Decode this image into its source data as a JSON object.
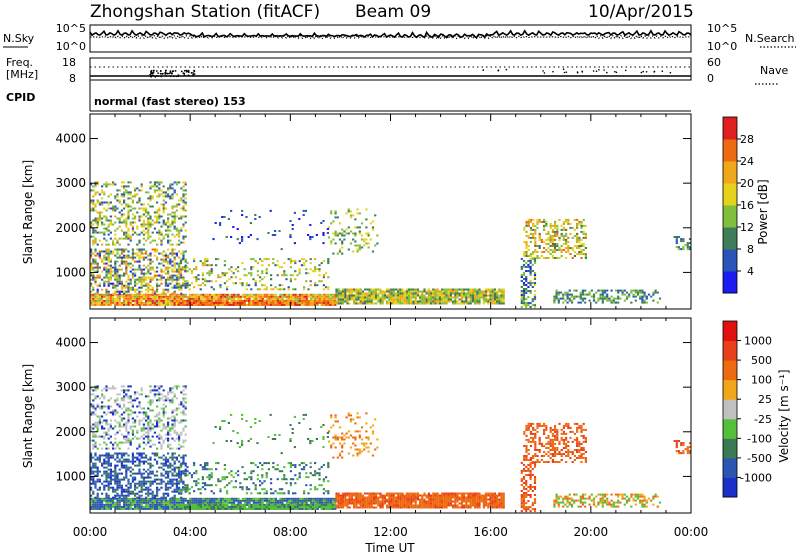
{
  "header": {
    "station": "Zhongshan Station (fitACF)",
    "beam": "Beam 09",
    "date": "10/Apr/2015"
  },
  "panels": {
    "nsky_label": "N.Sky",
    "nsearch_label": "N.Search",
    "nsky_ticks": [
      "10^5",
      "10^0"
    ],
    "nsearch_ticks": [
      "10^5",
      "10^0"
    ],
    "freq_label_line1": "Freq.",
    "freq_label_line2": "[MHz]",
    "freq_ticks": [
      "18",
      "8"
    ],
    "nave_label": "Nave",
    "nave_ticks": [
      "60",
      "0"
    ],
    "cpid_label": "CPID",
    "cpid_value": "normal (fast stereo) 153"
  },
  "chart_data": [
    {
      "type": "heatmap",
      "name": "power",
      "xlabel": "",
      "ylabel": "Slant Range [km]",
      "x_ticks": [
        "00:00",
        "04:00",
        "08:00",
        "12:00",
        "16:00",
        "20:00",
        "00:00"
      ],
      "y_ticks": [
        "1000",
        "2000",
        "3000",
        "4000"
      ],
      "xlim_hours": [
        0,
        24
      ],
      "ylim_km": [
        180,
        4550
      ],
      "colorbar": {
        "label": "Power [dB]",
        "ticks": [
          "4",
          "8",
          "12",
          "16",
          "20",
          "24",
          "28"
        ],
        "colors": [
          "#1c1cf0",
          "#2a55b8",
          "#3d7d5a",
          "#7fbf3a",
          "#e6d21a",
          "#f0a81a",
          "#ee6a10",
          "#e02020"
        ]
      }
    },
    {
      "type": "heatmap",
      "name": "velocity",
      "xlabel": "Time UT",
      "ylabel": "Slant Range [km]",
      "x_ticks": [
        "00:00",
        "04:00",
        "08:00",
        "12:00",
        "16:00",
        "20:00",
        "00:00"
      ],
      "y_ticks": [
        "1000",
        "2000",
        "3000",
        "4000"
      ],
      "xlim_hours": [
        0,
        24
      ],
      "ylim_km": [
        180,
        4550
      ],
      "colorbar": {
        "label": "Velocity [m s⁻¹]",
        "ticks": [
          "1000",
          "500",
          "100",
          "25",
          "-25",
          "-100",
          "-500",
          "-1000"
        ],
        "colors": [
          "#1a30c8",
          "#2a55b0",
          "#3c7a55",
          "#54c03a",
          "#c0c0c0",
          "#f0a81a",
          "#ee6a10",
          "#e8401a",
          "#e01010"
        ]
      }
    }
  ]
}
